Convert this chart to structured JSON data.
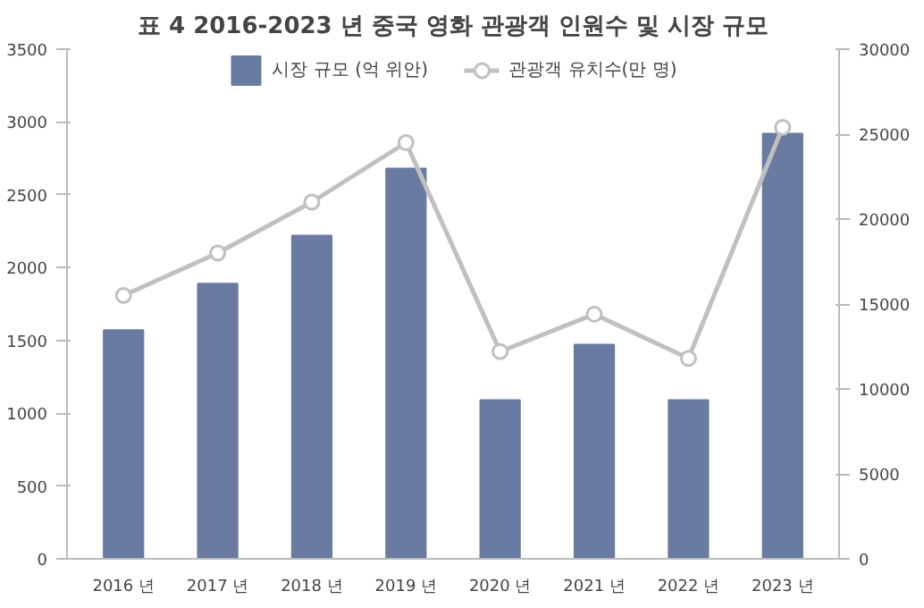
{
  "chart_data": {
    "type": "bar",
    "title": "표 4 2016-2023 년 중국 영화 관광객 인원수 및 시장 규모",
    "categories": [
      "2016 년",
      "2017 년",
      "2018 년",
      "2019 년",
      "2020 년",
      "2021 년",
      "2022 년",
      "2023 년"
    ],
    "series": [
      {
        "name": "시장 규모 (억 위안)",
        "color": "#6a7ba2",
        "values": [
          1570,
          1890,
          2220,
          2680,
          1090,
          1470,
          1090,
          2920
        ]
      },
      {
        "name": "관광객 유치수(만 명)",
        "color": "#c0c0c0",
        "type": "line",
        "axis": "y2",
        "marker": "circle",
        "values": [
          15500,
          18000,
          21000,
          24500,
          12200,
          14400,
          11800,
          25400
        ]
      }
    ],
    "ylim": [
      0,
      3500
    ],
    "yticks": [
      0,
      500,
      1000,
      1500,
      2000,
      2500,
      3000,
      3500
    ],
    "y2lim": [
      0,
      30000
    ],
    "y2ticks": [
      0,
      5000,
      10000,
      15000,
      20000,
      25000,
      30000
    ],
    "grid": false,
    "legend": "top"
  }
}
